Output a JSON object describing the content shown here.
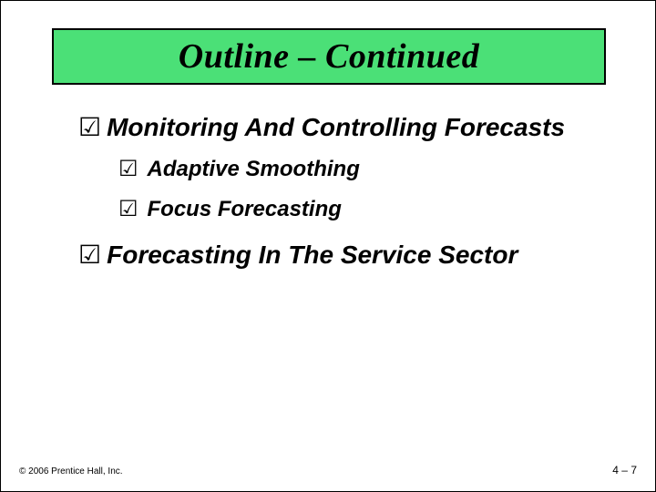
{
  "colors": {
    "title_bg": "#4be077",
    "title_border": "#000000",
    "text": "#000000",
    "slide_bg": "#ffffff"
  },
  "title": "Outline – Continued",
  "bullets": [
    {
      "marker": "☑",
      "label": "Monitoring And Controlling Forecasts",
      "children": [
        {
          "marker": "☑",
          "label": "Adaptive Smoothing"
        },
        {
          "marker": "☑",
          "label": "Focus Forecasting"
        }
      ]
    },
    {
      "marker": "☑",
      "label": "Forecasting In The Service Sector",
      "children": []
    }
  ],
  "footer": {
    "left": "© 2006 Prentice Hall, Inc.",
    "right": "4 – 7"
  }
}
